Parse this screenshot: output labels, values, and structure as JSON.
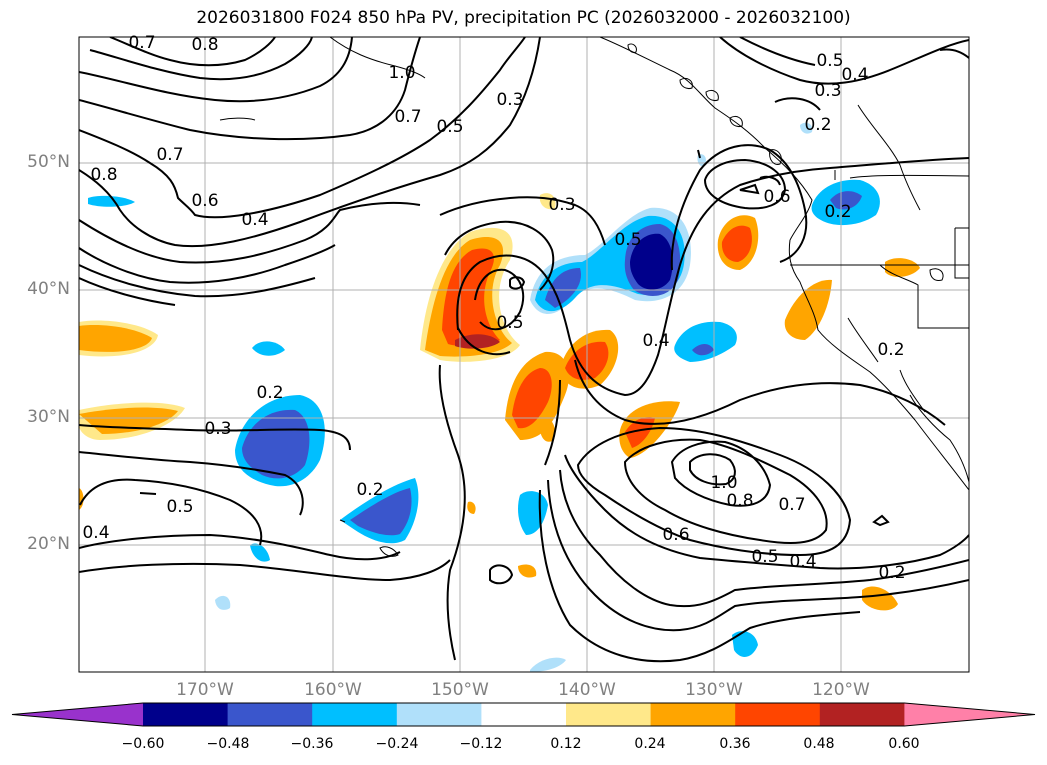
{
  "title": "2026031800 F024 850 hPa PV, precipitation PC (2026032000 - 2026032100)",
  "lat_ticks": [
    "50°N",
    "40°N",
    "30°N",
    "20°N"
  ],
  "lon_ticks": [
    "170°W",
    "160°W",
    "150°W",
    "140°W",
    "130°W",
    "120°W"
  ],
  "colorbar": {
    "ticks": [
      "−0.60",
      "−0.48",
      "−0.36",
      "−0.24",
      "−0.12",
      "0.12",
      "0.24",
      "0.36",
      "0.48",
      "0.60"
    ],
    "colors": [
      "#9932cc",
      "#00008b",
      "#3a56cc",
      "#00bfff",
      "#b0e0fa",
      "#ffffff",
      "#ffe88a",
      "#ffa500",
      "#ff4500",
      "#b22222",
      "#ff80a8"
    ]
  },
  "contour_labels": [
    {
      "t": "0.7"
    },
    {
      "t": "0.8"
    },
    {
      "t": "1.0"
    },
    {
      "t": "0.7"
    },
    {
      "t": "0.5"
    },
    {
      "t": "0.3"
    },
    {
      "t": "0.5"
    },
    {
      "t": "0.4"
    },
    {
      "t": "0.3"
    },
    {
      "t": "0.2"
    },
    {
      "t": "0.8"
    },
    {
      "t": "0.7"
    },
    {
      "t": "0.6"
    },
    {
      "t": "0.4"
    },
    {
      "t": "0.3"
    },
    {
      "t": "0.5"
    },
    {
      "t": "0.6"
    },
    {
      "t": "0.2"
    },
    {
      "t": "0.5"
    },
    {
      "t": "0.4"
    },
    {
      "t": "0.2"
    },
    {
      "t": "0.3"
    },
    {
      "t": "0.5"
    },
    {
      "t": "0.4"
    },
    {
      "t": "0.2"
    },
    {
      "t": "1.0"
    },
    {
      "t": "0.8"
    },
    {
      "t": "0.7"
    },
    {
      "t": "0.6"
    },
    {
      "t": "0.5"
    },
    {
      "t": "0.4"
    },
    {
      "t": "0.2"
    }
  ]
}
